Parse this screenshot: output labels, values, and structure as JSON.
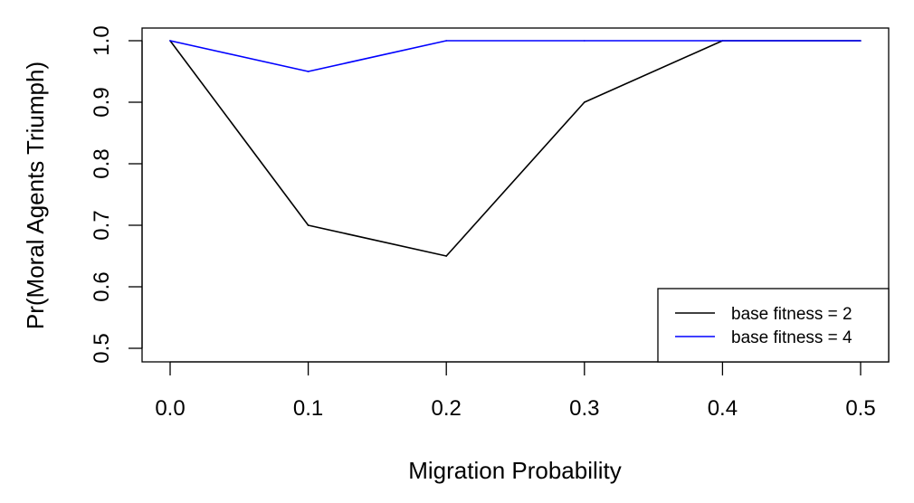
{
  "chart_data": {
    "type": "line",
    "title": "",
    "xlabel": "Migration Probability",
    "ylabel": "Pr(Moral Agents Triumph)",
    "x": [
      0.0,
      0.1,
      0.2,
      0.3,
      0.4,
      0.5
    ],
    "xlim": [
      0.0,
      0.5
    ],
    "ylim": [
      0.5,
      1.0
    ],
    "xticks": [
      "0.0",
      "0.1",
      "0.2",
      "0.3",
      "0.4",
      "0.5"
    ],
    "yticks": [
      "0.5",
      "0.6",
      "0.7",
      "0.8",
      "0.9",
      "1.0"
    ],
    "grid": false,
    "legend_position": "bottom-right",
    "series": [
      {
        "name": "base fitness = 2",
        "color": "#000000",
        "values": [
          1.0,
          0.7,
          0.65,
          0.9,
          1.0,
          1.0
        ]
      },
      {
        "name": "base fitness = 4",
        "color": "#0000ff",
        "values": [
          1.0,
          0.95,
          1.0,
          1.0,
          1.0,
          1.0
        ]
      }
    ]
  }
}
